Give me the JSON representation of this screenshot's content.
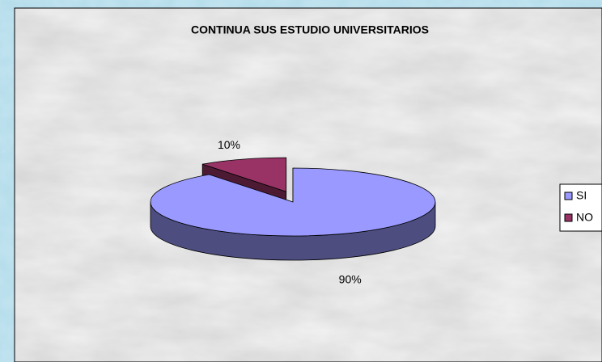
{
  "chart_data": {
    "type": "pie",
    "title": "CONTINUA SUS ESTUDIO UNIVERSITARIOS",
    "categories": [
      "SI",
      "NO"
    ],
    "values": [
      90,
      10
    ],
    "value_labels": [
      "90%",
      "10%"
    ],
    "colors": [
      "#9999ff",
      "#993366"
    ],
    "legend": "right"
  }
}
